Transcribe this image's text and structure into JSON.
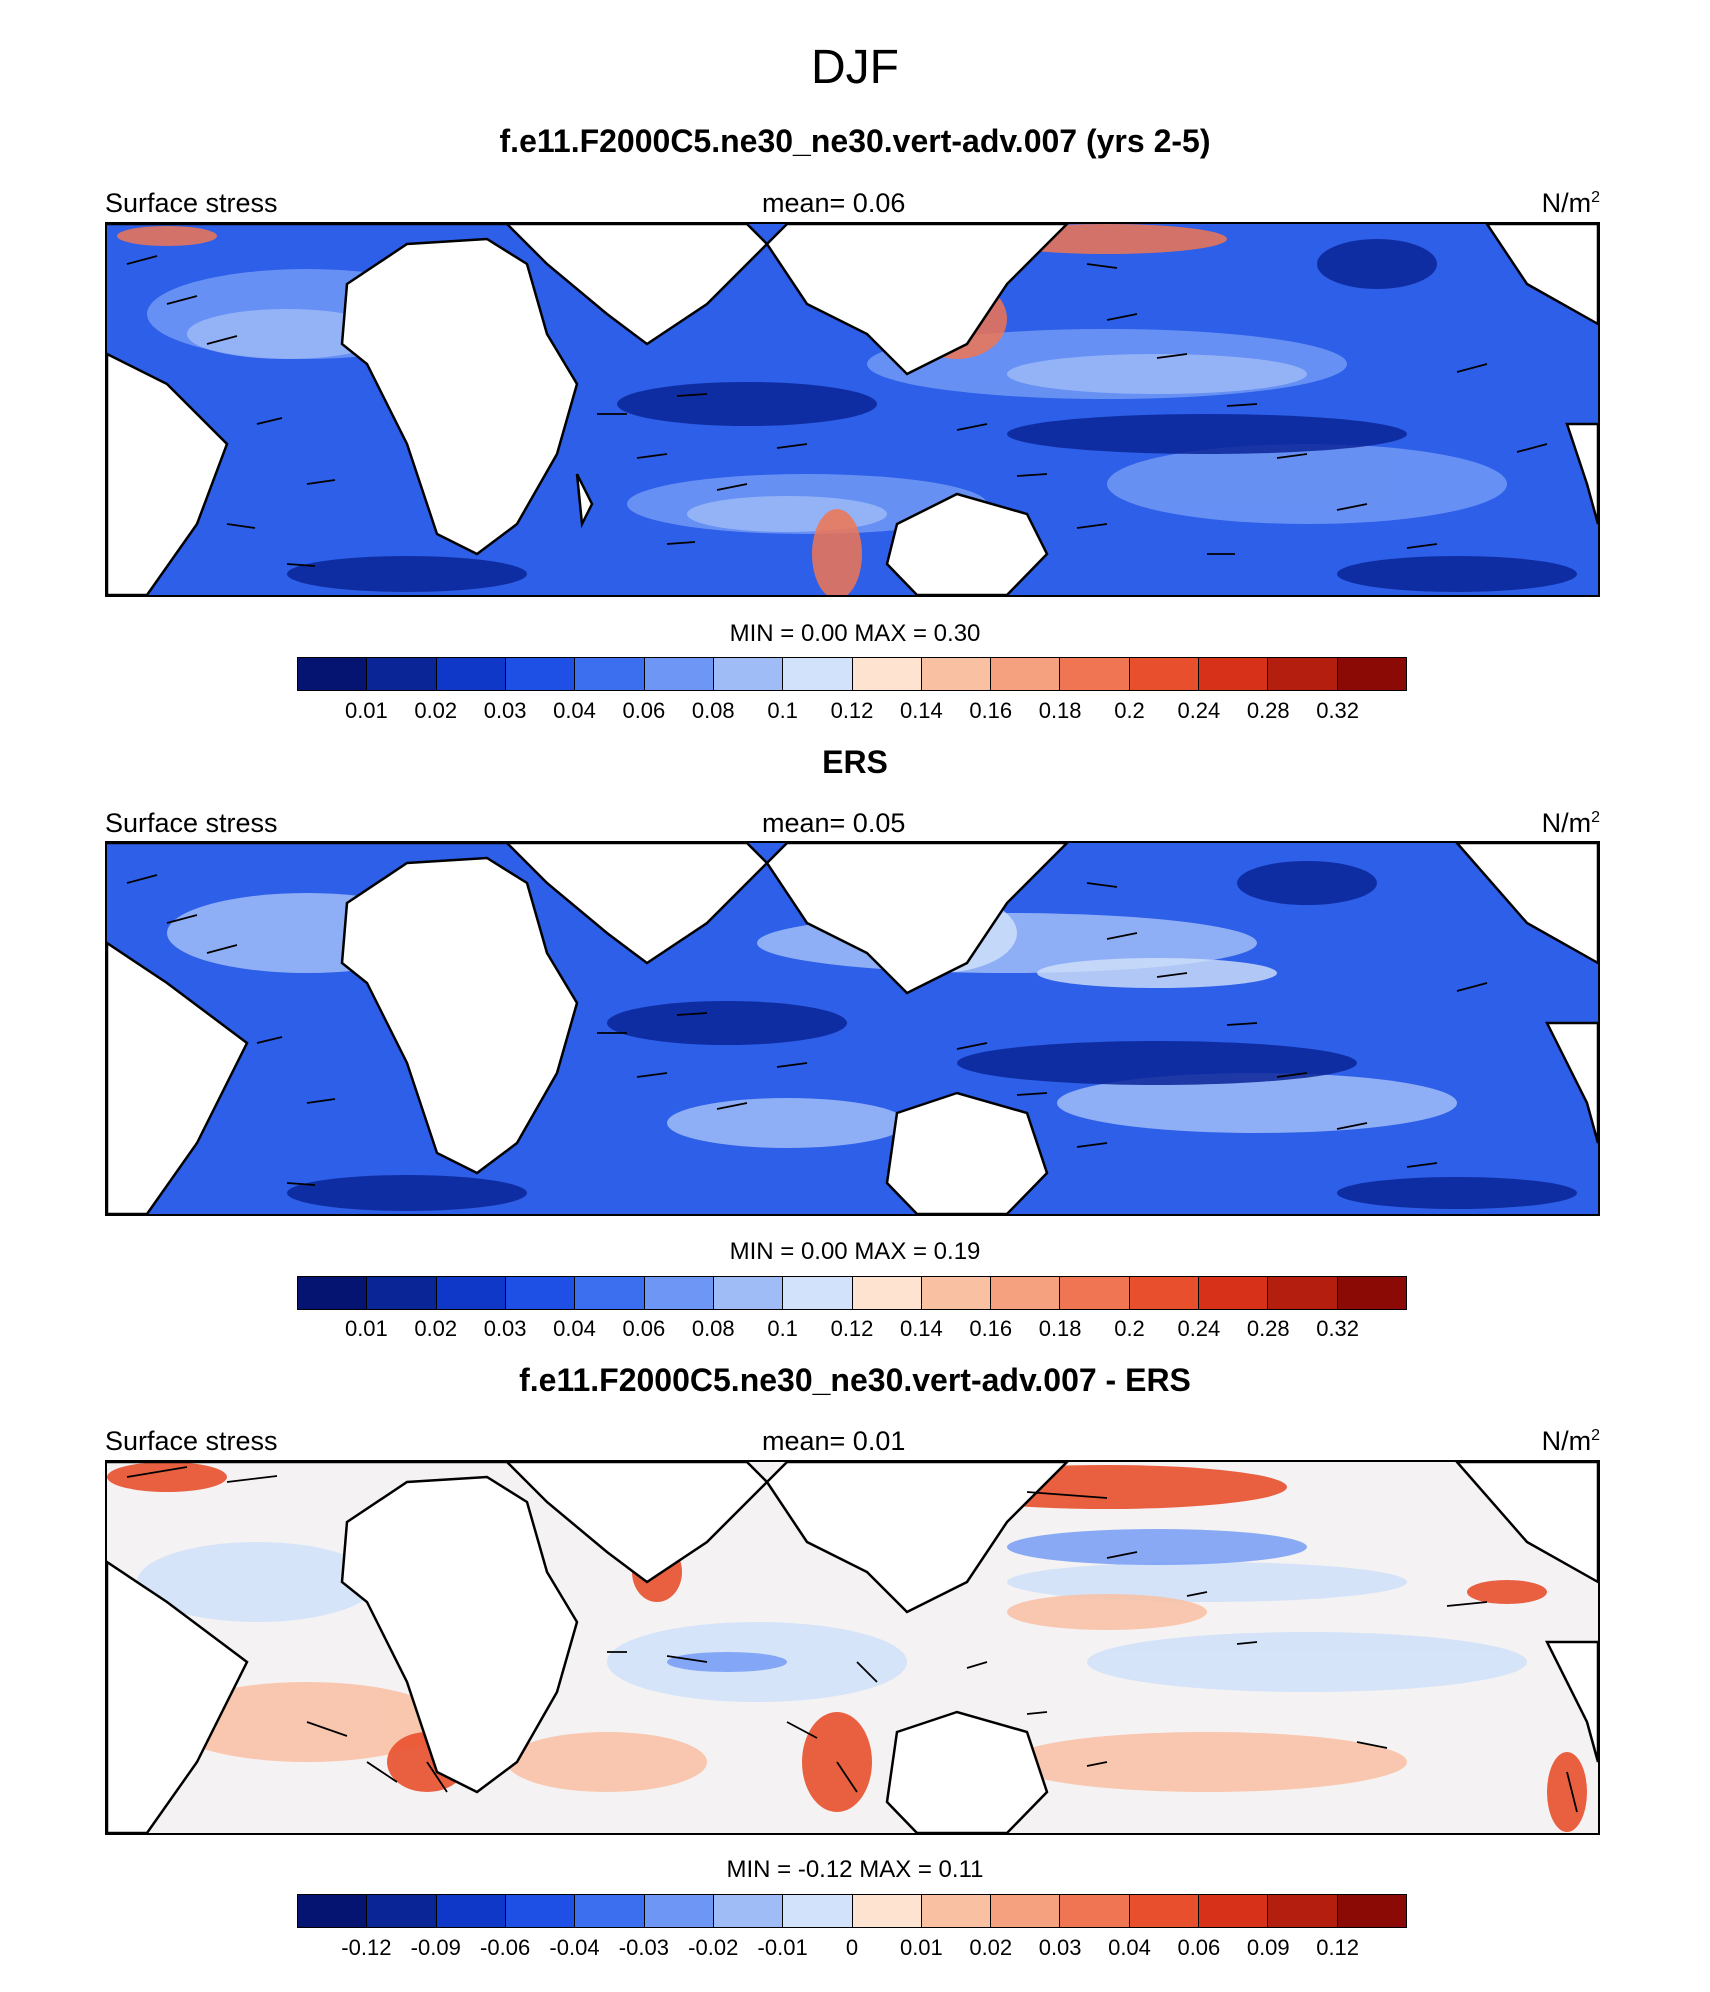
{
  "figure": {
    "title": "DJF",
    "panels": [
      {
        "id": "model",
        "title": "f.e11.F2000C5.ne30_ne30.vert-adv.007 (yrs 2-5)",
        "left_label": "Surface stress",
        "mean_label": "mean=   0.06",
        "units": "N/m",
        "units_sup": "2",
        "minmax": "MIN =   0.00 MAX =   0.30",
        "colorbar_ticks": [
          "0.01",
          "0.02",
          "0.03",
          "0.04",
          "0.06",
          "0.08",
          "0.1",
          "0.12",
          "0.14",
          "0.16",
          "0.18",
          "0.2",
          "0.24",
          "0.28",
          "0.32"
        ]
      },
      {
        "id": "obs",
        "title": "ERS",
        "left_label": "Surface stress",
        "mean_label": "mean=   0.05",
        "units": "N/m",
        "units_sup": "2",
        "minmax": "MIN =   0.00 MAX =   0.19",
        "colorbar_ticks": [
          "0.01",
          "0.02",
          "0.03",
          "0.04",
          "0.06",
          "0.08",
          "0.1",
          "0.12",
          "0.14",
          "0.16",
          "0.18",
          "0.2",
          "0.24",
          "0.28",
          "0.32"
        ]
      },
      {
        "id": "diff",
        "title": "f.e11.F2000C5.ne30_ne30.vert-adv.007 - ERS",
        "left_label": "Surface stress",
        "mean_label": "mean=   0.01",
        "units": "N/m",
        "units_sup": "2",
        "minmax": "MIN =  -0.12 MAX =   0.11",
        "colorbar_ticks": [
          "-0.12",
          "-0.09",
          "-0.06",
          "-0.04",
          "-0.03",
          "-0.02",
          "-0.01",
          "0",
          "0.01",
          "0.02",
          "0.03",
          "0.04",
          "0.06",
          "0.09",
          "0.12"
        ]
      }
    ],
    "colorbar_colors": [
      "#051470",
      "#0a2596",
      "#0f37c8",
      "#1e50e6",
      "#3c6ef0",
      "#6e96f5",
      "#a0bcf7",
      "#d2e2fa",
      "#fde3d0",
      "#f9c0a2",
      "#f5a07e",
      "#f07552",
      "#e8502d",
      "#d73219",
      "#b41e0f",
      "#8c0a05"
    ]
  }
}
